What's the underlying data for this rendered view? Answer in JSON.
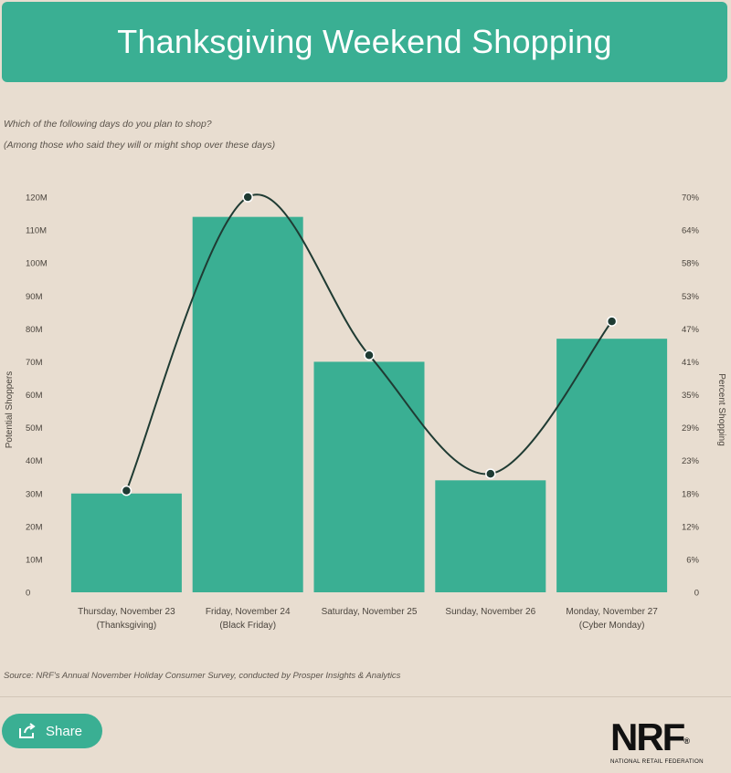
{
  "header": {
    "title": "Thanksgiving Weekend Shopping"
  },
  "subtitle_line1": "Which of the following days do you plan to shop?",
  "subtitle_line2": "(Among those who said they will or might shop over these days)",
  "source": "Source:  NRF's Annual November Holiday Consumer Survey, conducted by Prosper Insights & Analytics",
  "share": {
    "label": "Share",
    "icon": "share-icon"
  },
  "logo": {
    "text": "NRF",
    "subtext": "NATIONAL RETAIL FEDERATION"
  },
  "colors": {
    "bar": "#3aaf93",
    "line": "#1f3b33",
    "background": "#e8ddd0"
  },
  "chart_data": {
    "type": "bar",
    "categories": [
      [
        "Thursday, November 23",
        "(Thanksgiving)"
      ],
      [
        "Friday, November 24",
        "(Black Friday)"
      ],
      [
        "Saturday, November 25"
      ],
      [
        "Sunday, November 26"
      ],
      [
        "Monday, November 27",
        "(Cyber Monday)"
      ]
    ],
    "series": [
      {
        "values": [
          30,
          114,
          70,
          34,
          77
        ],
        "axis": "left",
        "kind": "bar"
      },
      {
        "values": [
          18,
          70,
          42,
          21,
          48
        ],
        "axis": "right",
        "kind": "line"
      }
    ],
    "ylabel": "Potential Shoppers",
    "ylabel_right": "Percent Shopping",
    "ylim": [
      0,
      120
    ],
    "ylim_right": [
      0,
      70
    ],
    "yticks": [
      "0",
      "10M",
      "20M",
      "30M",
      "40M",
      "50M",
      "60M",
      "70M",
      "80M",
      "90M",
      "100M",
      "110M",
      "120M"
    ],
    "yticks_right": [
      "0",
      "6%",
      "12%",
      "18%",
      "23%",
      "29%",
      "35%",
      "41%",
      "47%",
      "53%",
      "58%",
      "64%",
      "70%"
    ],
    "grid": false,
    "legend": false
  }
}
